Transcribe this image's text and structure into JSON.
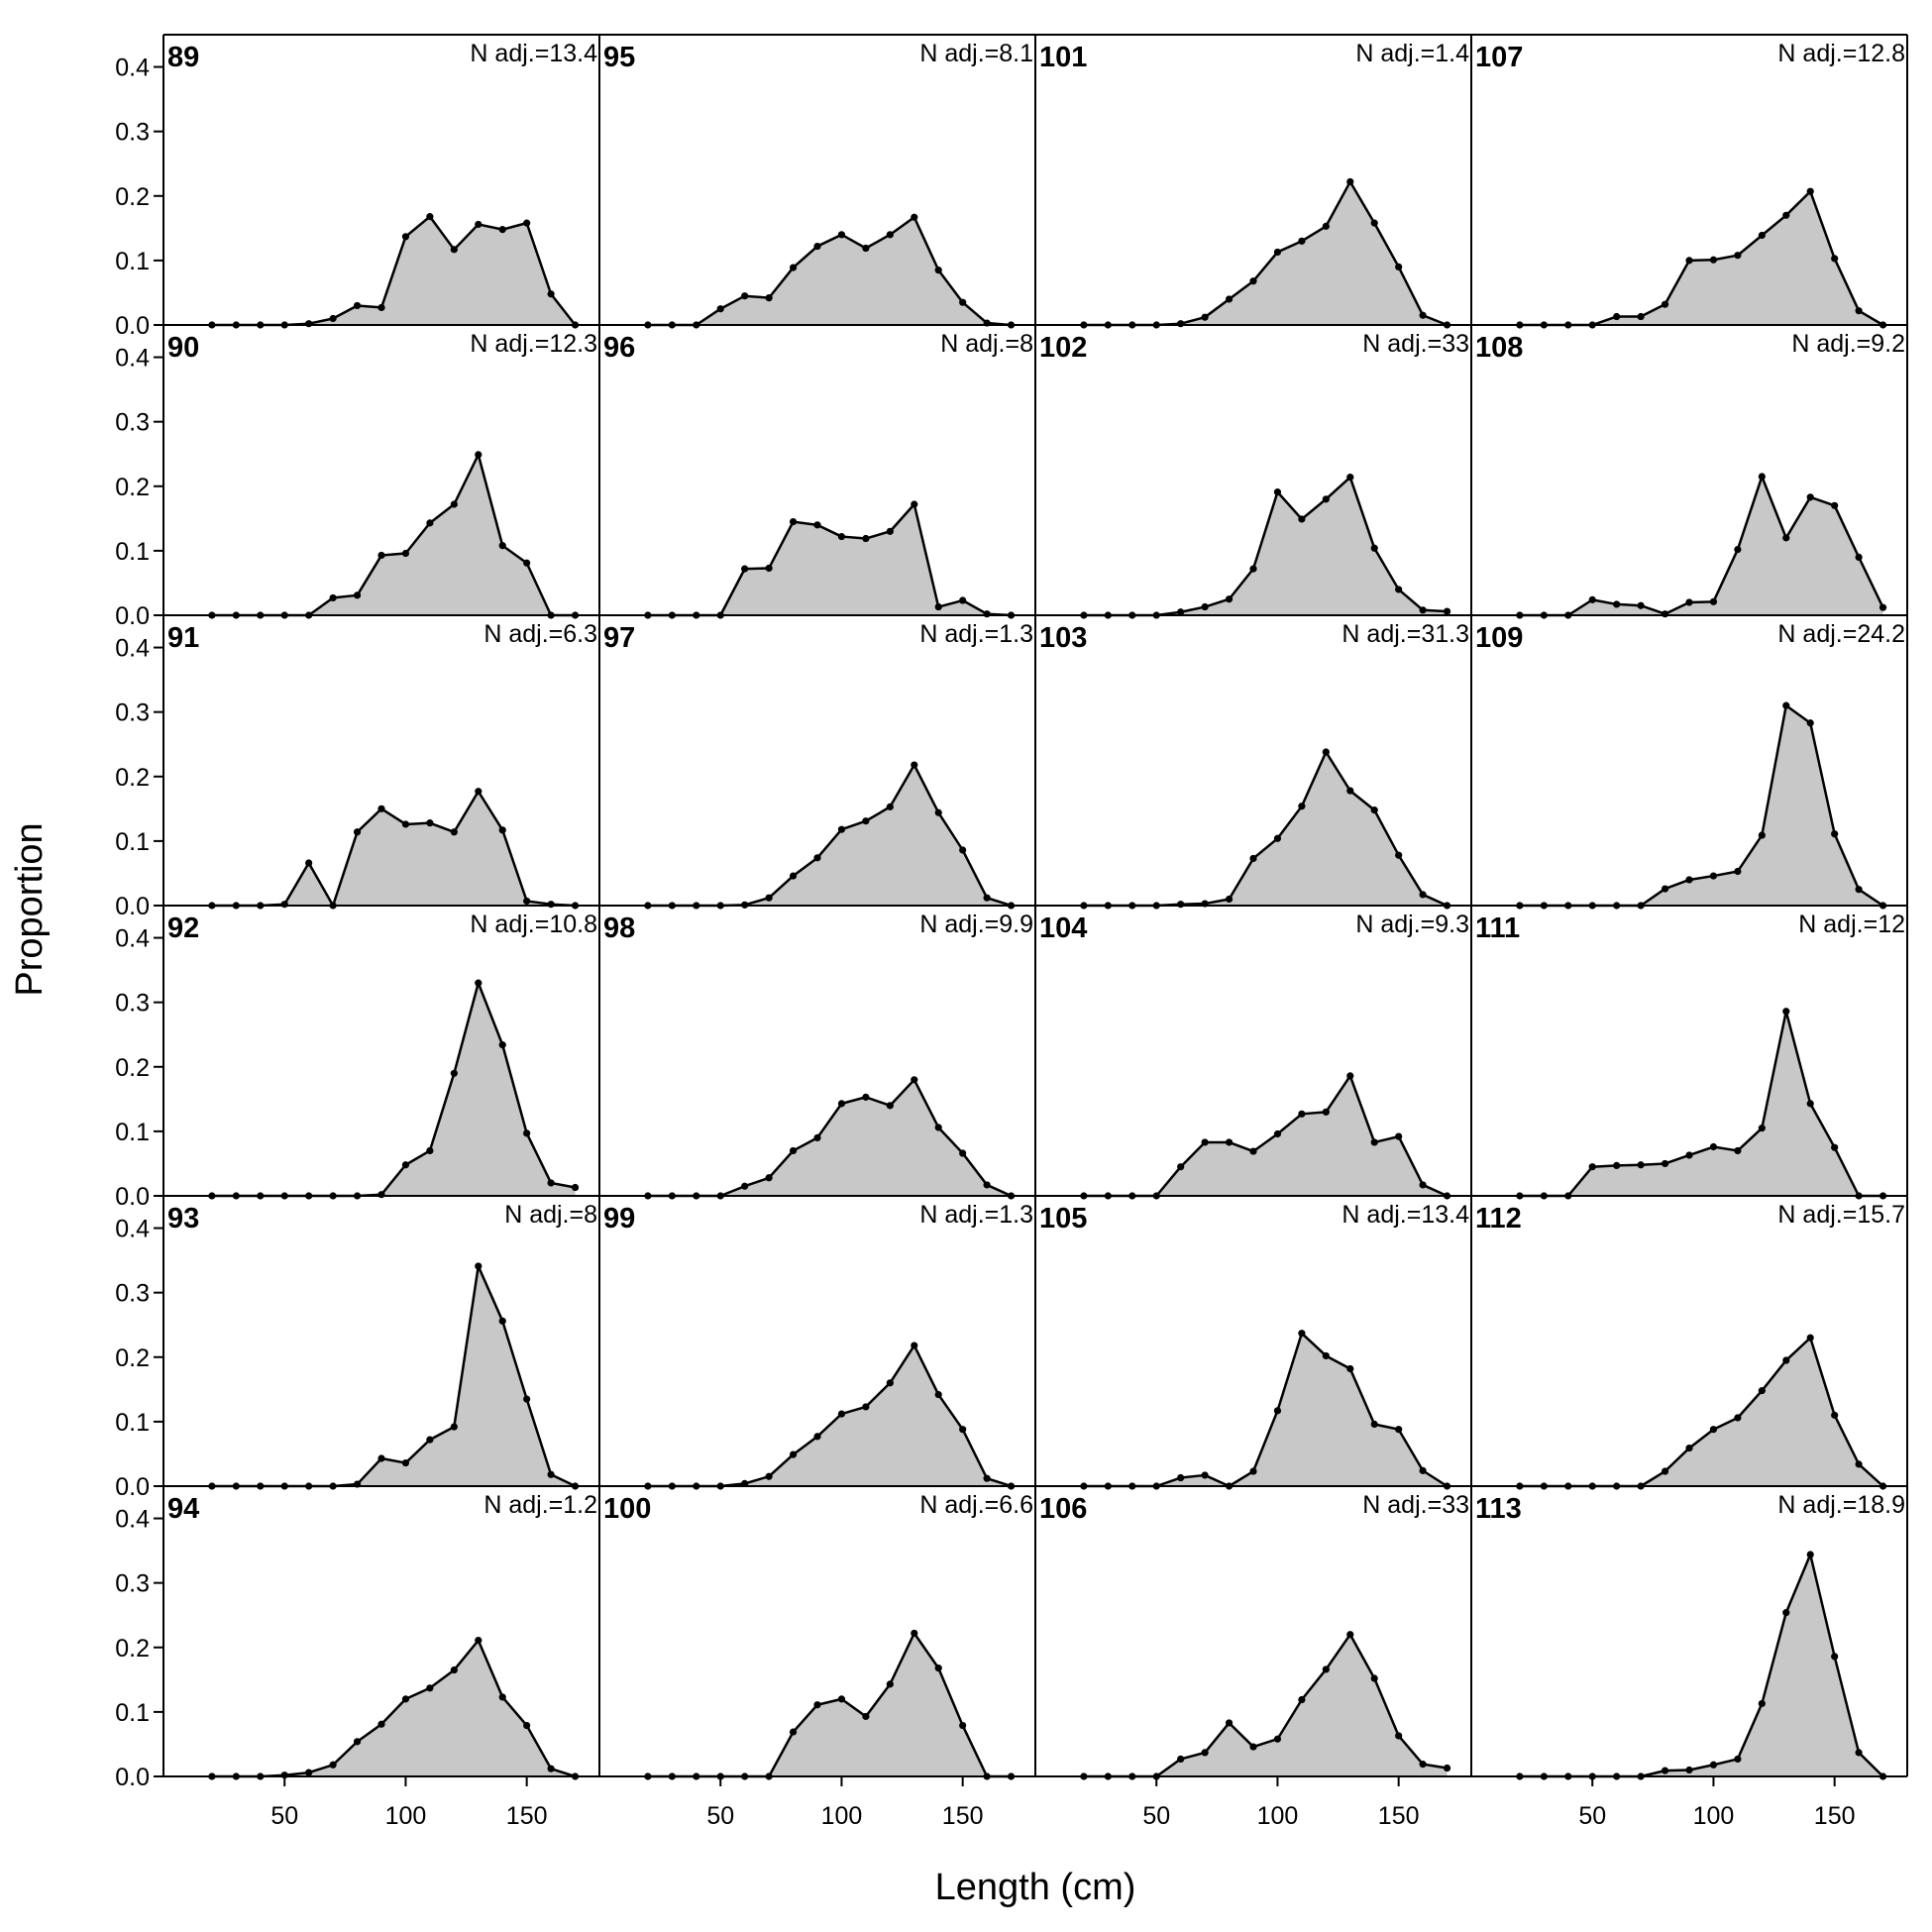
{
  "chart_data": {
    "type": "area",
    "xlabel": "Length (cm)",
    "ylabel": "Proportion",
    "xlim": [
      0,
      180
    ],
    "ylim": [
      0,
      0.45
    ],
    "xticks": [
      50,
      100,
      150
    ],
    "yticks": [
      0.0,
      0.1,
      0.2,
      0.3,
      0.4
    ],
    "ytick_labels": [
      "0.0",
      "0.1",
      "0.2",
      "0.3",
      "0.4"
    ],
    "layout": {
      "rows": 6,
      "cols": 4,
      "order": "column-major"
    },
    "colors": {
      "fill": "#c8c8c8",
      "line": "#000000"
    },
    "x": [
      20,
      30,
      40,
      50,
      60,
      70,
      80,
      90,
      100,
      110,
      120,
      130,
      140,
      150,
      160,
      170
    ],
    "panels": [
      {
        "label": "89",
        "n_label": "N adj.=13.4",
        "values": [
          0,
          0,
          0,
          0,
          0.002,
          0.01,
          0.03,
          0.027,
          0.137,
          0.168,
          0.117,
          0.156,
          0.148,
          0.158,
          0.048,
          0
        ]
      },
      {
        "label": "90",
        "n_label": "N adj.=12.3",
        "values": [
          0,
          0,
          0,
          0,
          0,
          0.027,
          0.031,
          0.093,
          0.096,
          0.143,
          0.172,
          0.249,
          0.108,
          0.081,
          0,
          0
        ]
      },
      {
        "label": "91",
        "n_label": "N adj.=6.3",
        "values": [
          0,
          0,
          0,
          0.002,
          0.066,
          0,
          0.114,
          0.15,
          0.126,
          0.128,
          0.114,
          0.177,
          0.117,
          0.007,
          0.002,
          0
        ]
      },
      {
        "label": "92",
        "n_label": "N adj.=10.8",
        "values": [
          0,
          0,
          0,
          0,
          0,
          0,
          0,
          0.002,
          0.048,
          0.07,
          0.19,
          0.33,
          0.234,
          0.097,
          0.02,
          0.013
        ]
      },
      {
        "label": "93",
        "n_label": "N adj.=8",
        "values": [
          0,
          0,
          0,
          0,
          0,
          0,
          0.003,
          0.043,
          0.036,
          0.072,
          0.092,
          0.341,
          0.256,
          0.135,
          0.018,
          0
        ]
      },
      {
        "label": "94",
        "n_label": "N adj.=1.2",
        "values": [
          0,
          0,
          0,
          0.002,
          0.006,
          0.018,
          0.054,
          0.081,
          0.12,
          0.137,
          0.165,
          0.211,
          0.123,
          0.079,
          0.012,
          0
        ]
      },
      {
        "label": "95",
        "n_label": "N adj.=8.1",
        "values": [
          0,
          0,
          0,
          0.025,
          0.045,
          0.042,
          0.089,
          0.122,
          0.14,
          0.119,
          0.14,
          0.167,
          0.085,
          0.035,
          0.003,
          0
        ]
      },
      {
        "label": "96",
        "n_label": "N adj.=8",
        "values": [
          0,
          0,
          0,
          0,
          0.072,
          0.073,
          0.145,
          0.14,
          0.122,
          0.119,
          0.13,
          0.172,
          0.013,
          0.023,
          0.002,
          0
        ]
      },
      {
        "label": "97",
        "n_label": "N adj.=1.3",
        "values": [
          0,
          0,
          0,
          0,
          0.001,
          0.012,
          0.046,
          0.074,
          0.118,
          0.131,
          0.153,
          0.218,
          0.144,
          0.086,
          0.012,
          0
        ]
      },
      {
        "label": "98",
        "n_label": "N adj.=9.9",
        "values": [
          0,
          0,
          0,
          0,
          0.015,
          0.028,
          0.07,
          0.09,
          0.143,
          0.153,
          0.14,
          0.18,
          0.106,
          0.066,
          0.017,
          0
        ]
      },
      {
        "label": "99",
        "n_label": "N adj.=1.3",
        "values": [
          0,
          0,
          0,
          0,
          0.004,
          0.015,
          0.049,
          0.077,
          0.112,
          0.123,
          0.16,
          0.218,
          0.142,
          0.088,
          0.012,
          0
        ]
      },
      {
        "label": "100",
        "n_label": "N adj.=6.6",
        "values": [
          0,
          0,
          0,
          0,
          0,
          0,
          0.069,
          0.111,
          0.12,
          0.093,
          0.143,
          0.222,
          0.168,
          0.079,
          0,
          0
        ]
      },
      {
        "label": "101",
        "n_label": "N adj.=1.4",
        "values": [
          0,
          0,
          0,
          0,
          0.002,
          0.012,
          0.04,
          0.068,
          0.113,
          0.13,
          0.153,
          0.222,
          0.158,
          0.09,
          0.015,
          0
        ]
      },
      {
        "label": "102",
        "n_label": "N adj.=33",
        "values": [
          0,
          0,
          0,
          0,
          0.005,
          0.013,
          0.025,
          0.072,
          0.191,
          0.149,
          0.18,
          0.214,
          0.104,
          0.04,
          0.008,
          0.006
        ]
      },
      {
        "label": "103",
        "n_label": "N adj.=31.3",
        "values": [
          0,
          0,
          0,
          0,
          0.002,
          0.003,
          0.01,
          0.073,
          0.104,
          0.154,
          0.238,
          0.178,
          0.148,
          0.078,
          0.017,
          0
        ]
      },
      {
        "label": "104",
        "n_label": "N adj.=9.3",
        "values": [
          0,
          0,
          0,
          0,
          0.045,
          0.083,
          0.083,
          0.069,
          0.096,
          0.127,
          0.13,
          0.186,
          0.083,
          0.092,
          0.017,
          0
        ]
      },
      {
        "label": "105",
        "n_label": "N adj.=13.4",
        "values": [
          0,
          0,
          0,
          0,
          0.013,
          0.017,
          0,
          0.023,
          0.117,
          0.237,
          0.202,
          0.182,
          0.096,
          0.088,
          0.024,
          0
        ]
      },
      {
        "label": "106",
        "n_label": "N adj.=33",
        "values": [
          0,
          0,
          0,
          0,
          0.027,
          0.037,
          0.083,
          0.046,
          0.058,
          0.119,
          0.166,
          0.22,
          0.152,
          0.063,
          0.019,
          0.013
        ]
      },
      {
        "label": "107",
        "n_label": "N adj.=12.8",
        "values": [
          0,
          0,
          0,
          0,
          0.013,
          0.013,
          0.032,
          0.1,
          0.101,
          0.108,
          0.139,
          0.17,
          0.207,
          0.103,
          0.022,
          0
        ]
      },
      {
        "label": "108",
        "n_label": "N adj.=9.2",
        "values": [
          0,
          0,
          0,
          0.024,
          0.017,
          0.015,
          0.002,
          0.02,
          0.021,
          0.102,
          0.215,
          0.12,
          0.183,
          0.17,
          0.09,
          0.012
        ]
      },
      {
        "label": "109",
        "n_label": "N adj.=24.2",
        "values": [
          0,
          0,
          0,
          0,
          0,
          0,
          0.026,
          0.04,
          0.046,
          0.053,
          0.109,
          0.31,
          0.283,
          0.111,
          0.025,
          0
        ]
      },
      {
        "label": "111",
        "n_label": "N adj.=12",
        "values": [
          0,
          0,
          0,
          0.045,
          0.047,
          0.048,
          0.05,
          0.063,
          0.076,
          0.07,
          0.105,
          0.286,
          0.143,
          0.075,
          0,
          0
        ]
      },
      {
        "label": "112",
        "n_label": "N adj.=15.7",
        "values": [
          0,
          0,
          0,
          0,
          0,
          0,
          0.023,
          0.059,
          0.088,
          0.106,
          0.148,
          0.195,
          0.23,
          0.11,
          0.034,
          0
        ]
      },
      {
        "label": "113",
        "n_label": "N adj.=18.9",
        "values": [
          0,
          0,
          0,
          0,
          0,
          0,
          0.009,
          0.01,
          0.018,
          0.027,
          0.113,
          0.254,
          0.344,
          0.186,
          0.037,
          0
        ]
      }
    ]
  }
}
